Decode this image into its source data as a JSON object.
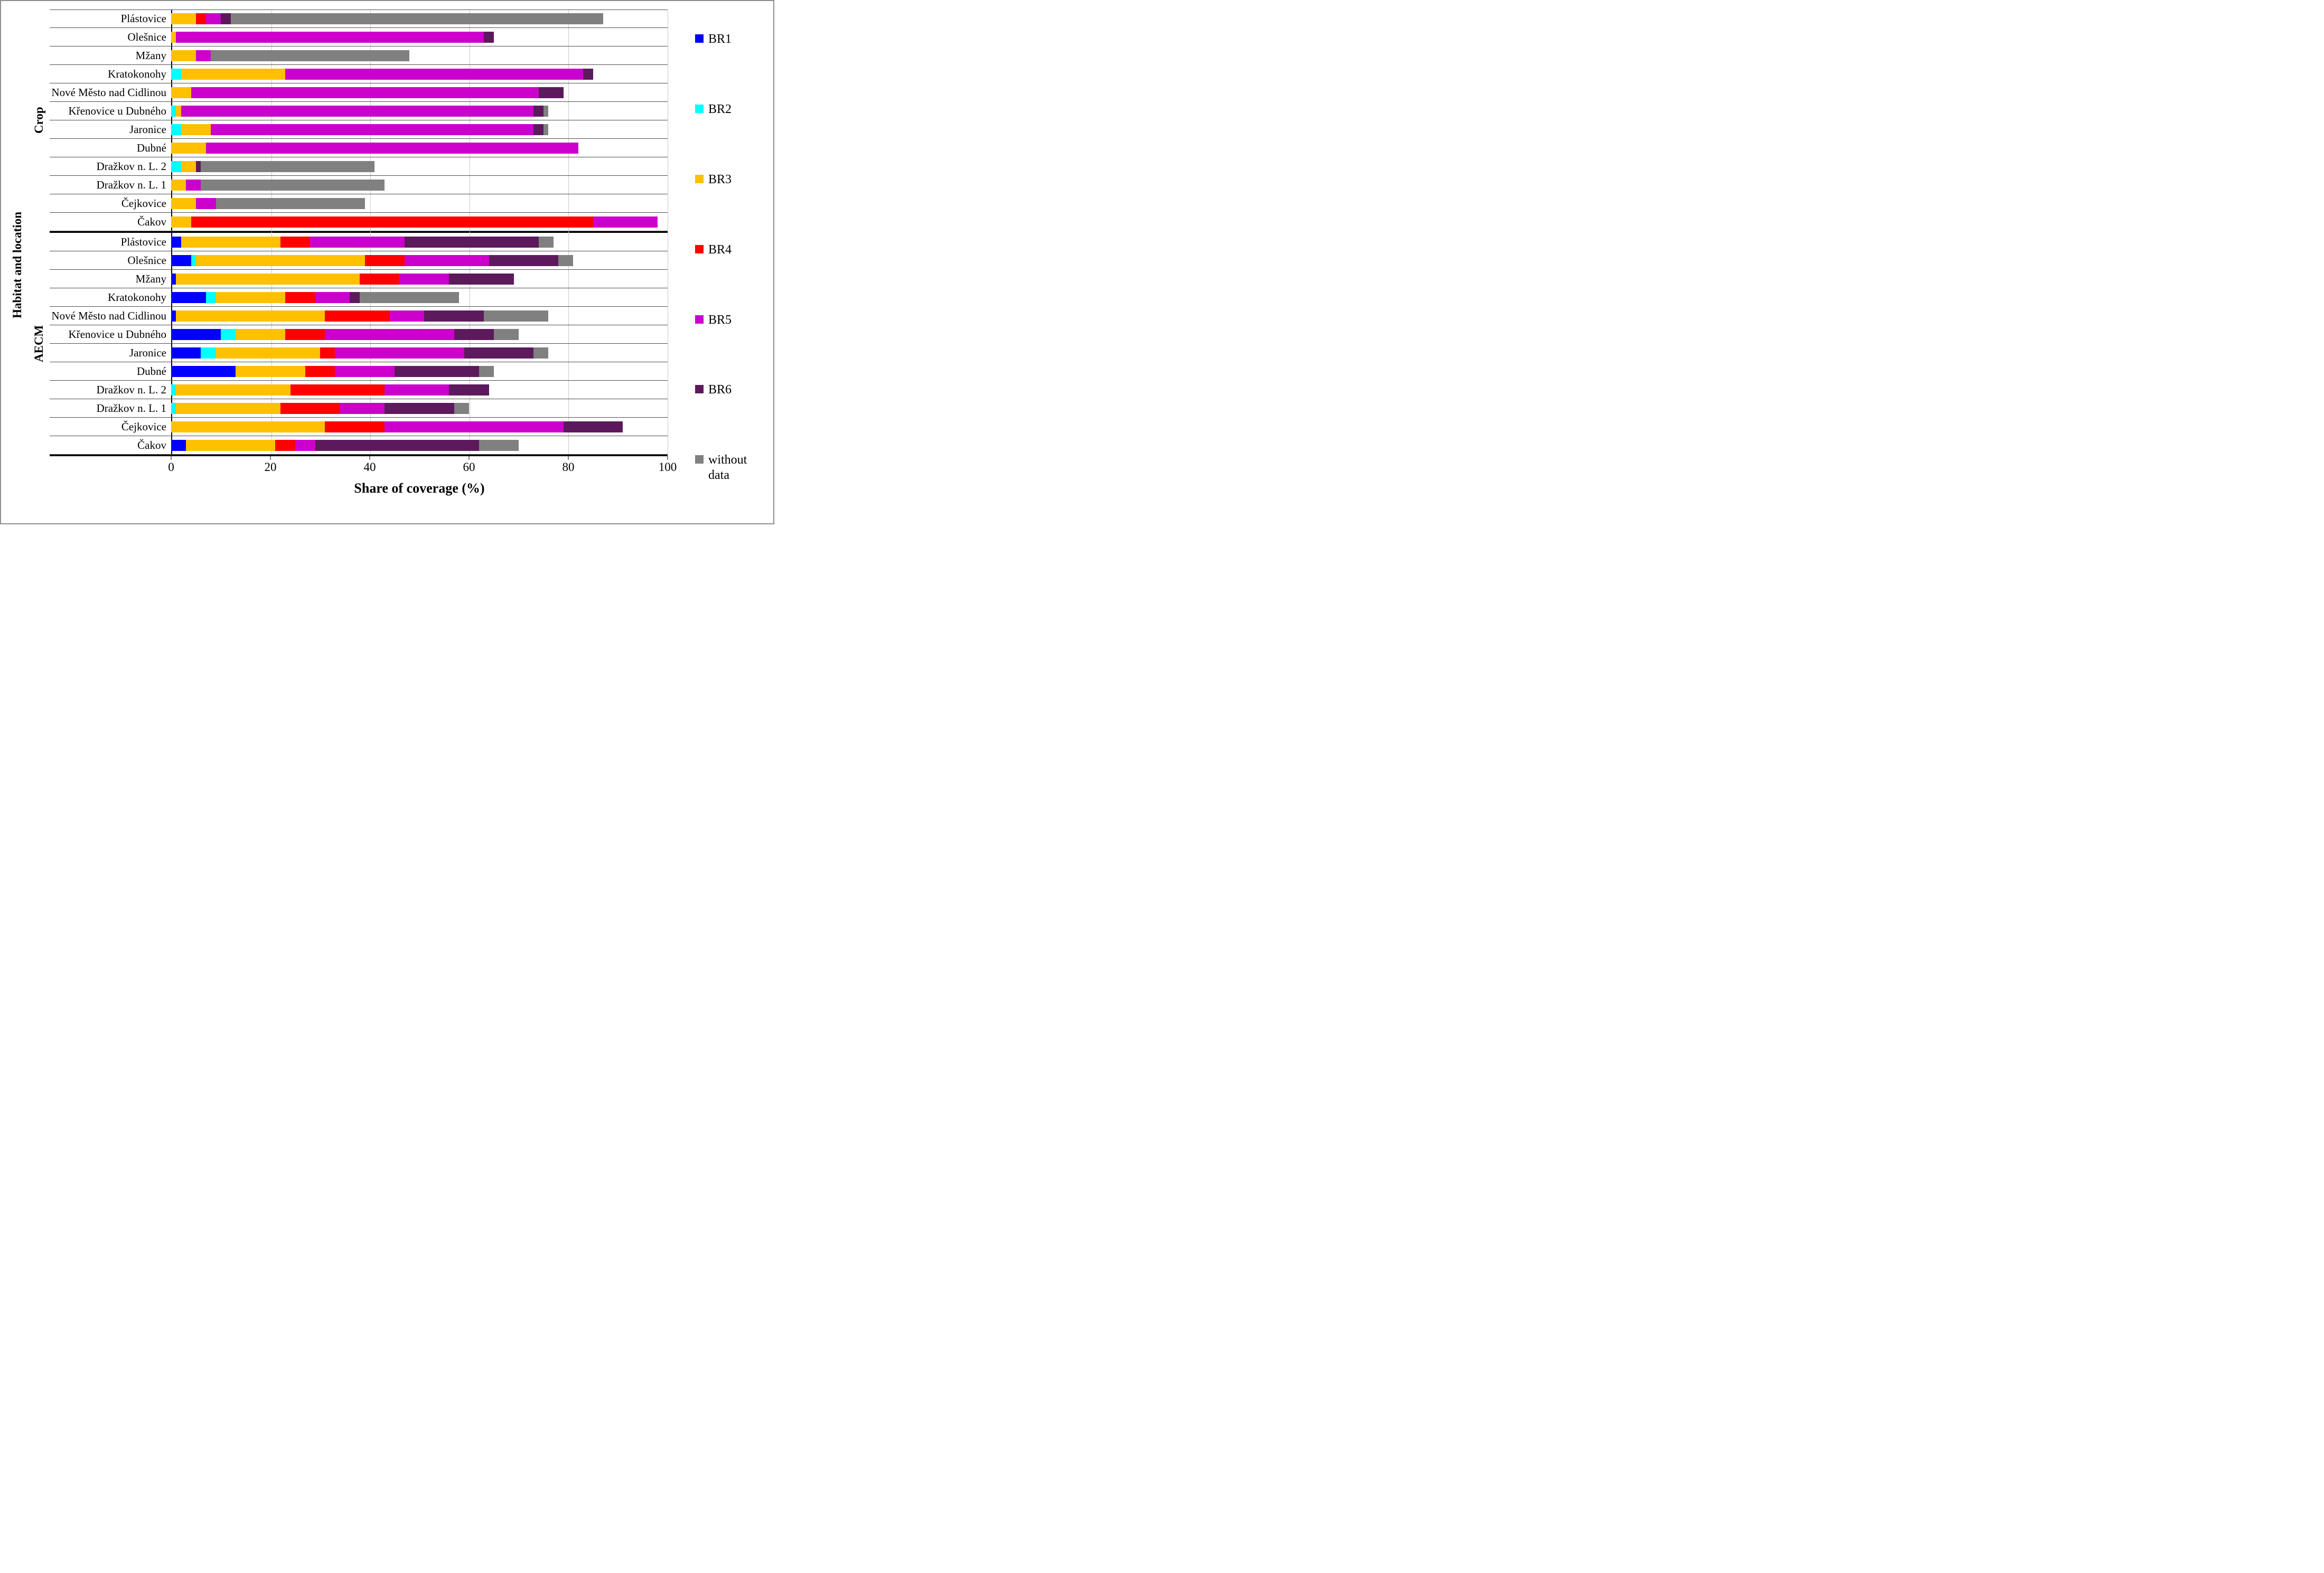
{
  "chart_data": {
    "type": "bar",
    "orientation": "horizontal",
    "stacked": true,
    "xlabel": "Share of coverage (%)",
    "ylabel": "Habitat and location",
    "xlim": [
      0,
      100
    ],
    "xticks": [
      0,
      20,
      40,
      60,
      80,
      100
    ],
    "legend_position": "right",
    "grid": "horizontal category separators, vertical gridlines at ticks",
    "series_meta": [
      {
        "name": "BR1",
        "color": "#0000FF"
      },
      {
        "name": "BR2",
        "color": "#00FFFF"
      },
      {
        "name": "BR3",
        "color": "#FFC000"
      },
      {
        "name": "BR4",
        "color": "#FF0000"
      },
      {
        "name": "BR5",
        "color": "#CC00CC"
      },
      {
        "name": "BR6",
        "color": "#5C1A5C"
      },
      {
        "name": "without data",
        "color": "#808080"
      }
    ],
    "series_order_note": "values arrays follow series_meta order: BR1, BR2, BR3, BR4, BR5, BR6, without data (percent of coverage)",
    "groups": [
      {
        "label": "Crop",
        "rows": [
          {
            "category": "Plástovice",
            "values": [
              0,
              0,
              5,
              2,
              3,
              2,
              75
            ]
          },
          {
            "category": "Olešnice",
            "values": [
              0,
              0,
              1,
              0,
              62,
              2,
              0
            ]
          },
          {
            "category": "Mžany",
            "values": [
              0,
              0,
              5,
              0,
              3,
              0,
              40
            ]
          },
          {
            "category": "Kratokonohy",
            "values": [
              0,
              2,
              21,
              0,
              60,
              2,
              0
            ]
          },
          {
            "category": "Nové Město nad Cidlinou",
            "values": [
              0,
              0,
              4,
              0,
              70,
              5,
              0
            ]
          },
          {
            "category": "Křenovice u Dubného",
            "values": [
              0,
              1,
              1,
              0,
              71,
              2,
              1
            ]
          },
          {
            "category": "Jaronice",
            "values": [
              0,
              2,
              6,
              0,
              65,
              2,
              1
            ]
          },
          {
            "category": "Dubné",
            "values": [
              0,
              0,
              7,
              0,
              75,
              0,
              0
            ]
          },
          {
            "category": "Dražkov n. L. 2",
            "values": [
              0,
              2,
              3,
              0,
              0,
              1,
              35
            ]
          },
          {
            "category": "Dražkov n. L. 1",
            "values": [
              0,
              0,
              3,
              0,
              3,
              0,
              37
            ]
          },
          {
            "category": "Čejkovice",
            "values": [
              0,
              0,
              5,
              0,
              4,
              0,
              30
            ]
          },
          {
            "category": "Čakov",
            "values": [
              0,
              0,
              4,
              81,
              13,
              0,
              0
            ]
          }
        ]
      },
      {
        "label": "AECM",
        "rows": [
          {
            "category": "Plástovice",
            "values": [
              2,
              0,
              20,
              6,
              19,
              27,
              3
            ]
          },
          {
            "category": "Olešnice",
            "values": [
              4,
              1,
              34,
              8,
              17,
              14,
              3
            ]
          },
          {
            "category": "Mžany",
            "values": [
              1,
              0,
              37,
              8,
              10,
              13,
              0
            ]
          },
          {
            "category": "Kratokonohy",
            "values": [
              7,
              2,
              14,
              6,
              7,
              2,
              20
            ]
          },
          {
            "category": "Nové Město nad Cidlinou",
            "values": [
              1,
              0,
              30,
              13,
              7,
              12,
              13
            ]
          },
          {
            "category": "Křenovice u Dubného",
            "values": [
              10,
              3,
              10,
              8,
              26,
              8,
              5
            ]
          },
          {
            "category": "Jaronice",
            "values": [
              6,
              3,
              21,
              3,
              26,
              14,
              3
            ]
          },
          {
            "category": "Dubné",
            "values": [
              13,
              0,
              14,
              6,
              12,
              17,
              3
            ]
          },
          {
            "category": "Dražkov n. L. 2",
            "values": [
              0,
              1,
              23,
              19,
              13,
              8,
              0
            ]
          },
          {
            "category": "Dražkov n. L. 1",
            "values": [
              0,
              1,
              21,
              12,
              9,
              14,
              3
            ]
          },
          {
            "category": "Čejkovice",
            "values": [
              0,
              0,
              31,
              12,
              36,
              12,
              0
            ]
          },
          {
            "category": "Čakov",
            "values": [
              3,
              0,
              18,
              4,
              4,
              33,
              8
            ]
          }
        ]
      }
    ]
  }
}
